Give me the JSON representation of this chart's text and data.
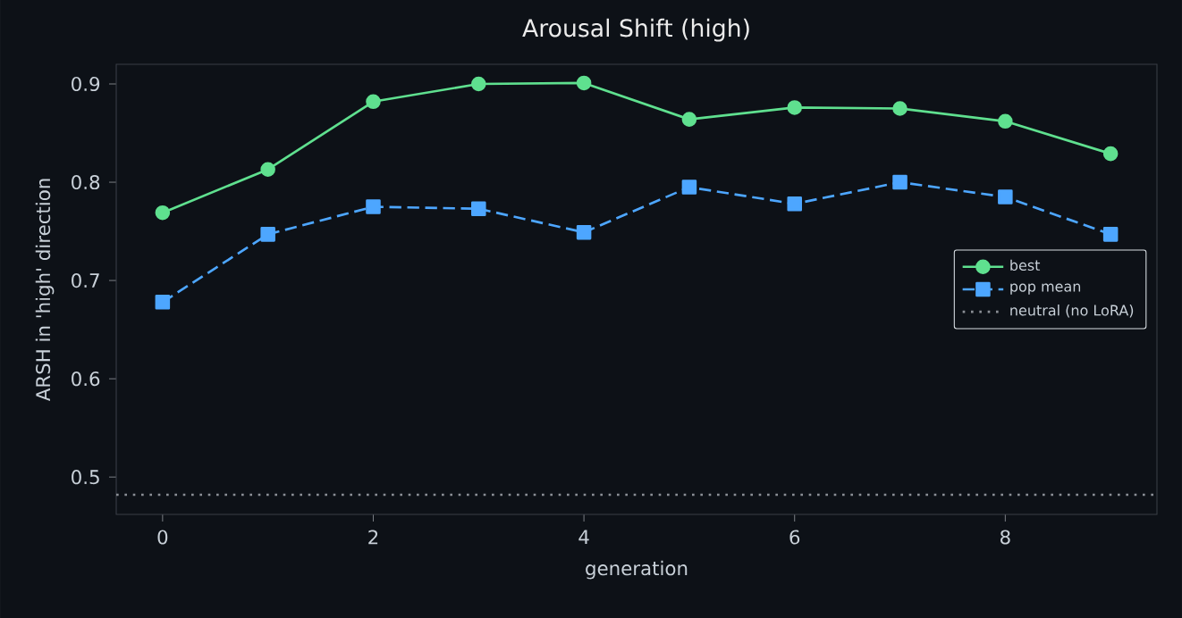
{
  "chart_data": {
    "type": "line",
    "title": "Arousal Shift (high)",
    "xlabel": "generation",
    "ylabel": "ARSH in 'high' direction",
    "x": [
      0,
      1,
      2,
      3,
      4,
      5,
      6,
      7,
      8,
      9
    ],
    "xlim": [
      -0.44,
      9.44
    ],
    "ylim": [
      0.462,
      0.92
    ],
    "xticks": [
      0,
      2,
      4,
      6,
      8
    ],
    "yticks": [
      0.5,
      0.6,
      0.7,
      0.8,
      0.9
    ],
    "series": [
      {
        "name": "best",
        "color": "#5fe08f",
        "marker": "circle",
        "line_style": "solid",
        "values": [
          0.769,
          0.813,
          0.882,
          0.9,
          0.901,
          0.864,
          0.876,
          0.875,
          0.862,
          0.829
        ]
      },
      {
        "name": "pop mean",
        "color": "#4da6ff",
        "marker": "square",
        "line_style": "dashed",
        "values": [
          0.678,
          0.747,
          0.775,
          0.773,
          0.749,
          0.795,
          0.778,
          0.8,
          0.785,
          0.747
        ]
      }
    ],
    "ref_lines": [
      {
        "axis": "y",
        "value": 0.482,
        "label": "neutral (no LoRA)",
        "color": "#8b8f96",
        "line_style": "dotted"
      }
    ],
    "legend": "center right"
  }
}
